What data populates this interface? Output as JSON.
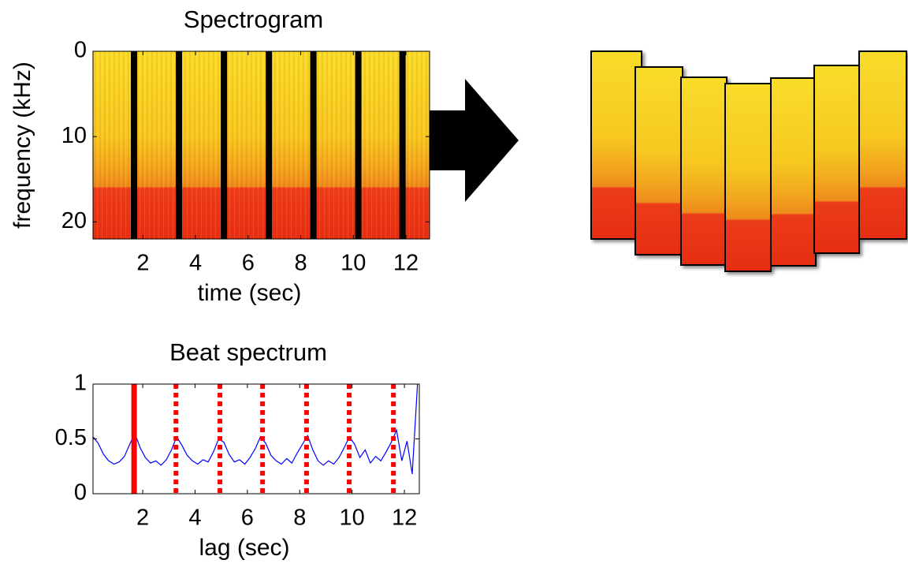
{
  "chart_data": [
    {
      "type": "spectrogram",
      "title": "Spectrogram",
      "xlabel": "time (sec)",
      "ylabel": "frequency (kHz)",
      "xlim": [
        0.1,
        12.9
      ],
      "ylim": [
        0,
        22
      ],
      "xticks": [
        2,
        4,
        6,
        8,
        10,
        12
      ],
      "yticks": [
        0,
        10,
        20
      ],
      "y_inverted": true,
      "beat_boundaries": [
        1.66,
        3.37,
        5.08,
        6.79,
        8.48,
        10.19,
        11.87
      ],
      "boundary_color": "#000000"
    },
    {
      "type": "line",
      "title": "Beat spectrum",
      "xlabel": "lag (sec)",
      "xlim": [
        0.1,
        12.57
      ],
      "ylim": [
        0,
        1
      ],
      "xticks": [
        2,
        4,
        6,
        8,
        10,
        12
      ],
      "yticks": [
        0,
        0.5,
        1
      ],
      "color": "#0000ff",
      "x": [
        0.1,
        0.3,
        0.5,
        0.7,
        0.9,
        1.1,
        1.3,
        1.5,
        1.7,
        1.9,
        2.1,
        2.3,
        2.5,
        2.7,
        2.9,
        3.1,
        3.3,
        3.5,
        3.7,
        3.9,
        4.1,
        4.3,
        4.5,
        4.7,
        4.9,
        5.1,
        5.3,
        5.5,
        5.7,
        5.9,
        6.1,
        6.3,
        6.5,
        6.7,
        6.9,
        7.1,
        7.3,
        7.5,
        7.7,
        7.9,
        8.1,
        8.3,
        8.5,
        8.7,
        8.9,
        9.1,
        9.3,
        9.5,
        9.7,
        9.9,
        10.1,
        10.3,
        10.5,
        10.7,
        10.9,
        11.1,
        11.3,
        11.5,
        11.7,
        11.9,
        12.1,
        12.3,
        12.5
      ],
      "values": [
        0.52,
        0.46,
        0.36,
        0.3,
        0.27,
        0.29,
        0.34,
        0.45,
        0.55,
        0.42,
        0.33,
        0.28,
        0.3,
        0.26,
        0.31,
        0.4,
        0.52,
        0.44,
        0.35,
        0.3,
        0.27,
        0.31,
        0.29,
        0.38,
        0.5,
        0.47,
        0.36,
        0.29,
        0.31,
        0.27,
        0.33,
        0.41,
        0.52,
        0.46,
        0.35,
        0.3,
        0.27,
        0.32,
        0.28,
        0.37,
        0.45,
        0.53,
        0.4,
        0.3,
        0.26,
        0.3,
        0.27,
        0.33,
        0.42,
        0.52,
        0.45,
        0.33,
        0.4,
        0.28,
        0.34,
        0.3,
        0.38,
        0.47,
        0.58,
        0.3,
        0.48,
        0.18,
        1.0
      ],
      "markers": [
        {
          "x": 1.67,
          "style": "solid"
        },
        {
          "x": 3.27,
          "style": "dotted"
        },
        {
          "x": 4.95,
          "style": "dotted"
        },
        {
          "x": 6.58,
          "style": "dotted"
        },
        {
          "x": 8.26,
          "style": "dotted"
        },
        {
          "x": 9.89,
          "style": "dotted"
        },
        {
          "x": 11.58,
          "style": "dotted"
        }
      ],
      "marker_color": "#ff0000"
    }
  ]
}
